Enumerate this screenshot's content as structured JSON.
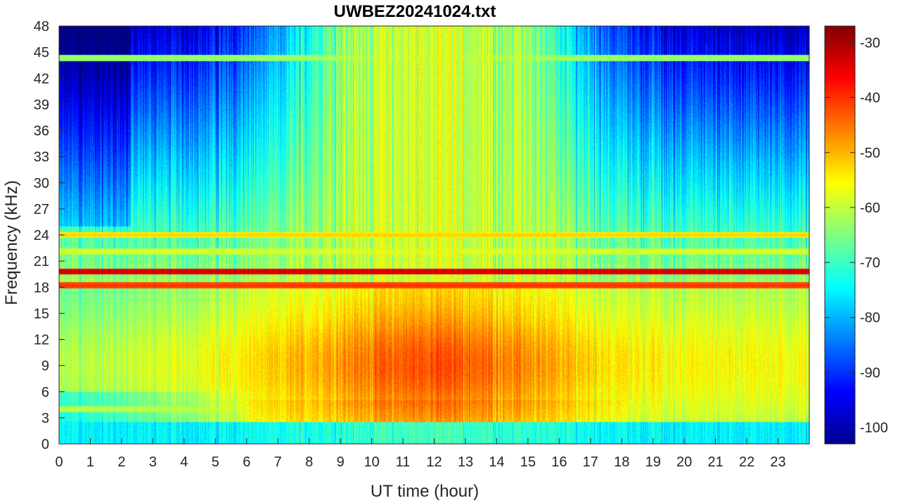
{
  "chart_data": {
    "type": "heatmap",
    "title": "UWBEZ20241024.txt",
    "xlabel": "UT time (hour)",
    "ylabel": "Frequency (kHz)",
    "xlim": [
      0,
      24
    ],
    "ylim": [
      0,
      48
    ],
    "xticks": [
      0,
      1,
      2,
      3,
      4,
      5,
      6,
      7,
      8,
      9,
      10,
      11,
      12,
      13,
      14,
      15,
      16,
      17,
      18,
      19,
      20,
      21,
      22,
      23
    ],
    "yticks": [
      0,
      3,
      6,
      9,
      12,
      15,
      18,
      21,
      24,
      27,
      30,
      33,
      36,
      39,
      42,
      45,
      48
    ],
    "colorbar": {
      "range": [
        -103,
        -27
      ],
      "ticks": [
        -30,
        -40,
        -50,
        -60,
        -70,
        -80,
        -90,
        -100
      ],
      "colormap": "jet"
    },
    "lines": [
      {
        "freq_khz": 19.8,
        "level_db": -33
      },
      {
        "freq_khz": 18.2,
        "level_db": -40
      },
      {
        "freq_khz": 24.0,
        "level_db": -52
      },
      {
        "freq_khz": 44.3,
        "level_db": -62
      },
      {
        "freq_khz": 4.0,
        "level_db": -60
      },
      {
        "freq_khz": 22.1,
        "level_db": -58
      }
    ],
    "features": {
      "daytime_peak_hour": 12,
      "lowband_peak_db": -42,
      "quiet_highfreq_db": -88
    }
  }
}
